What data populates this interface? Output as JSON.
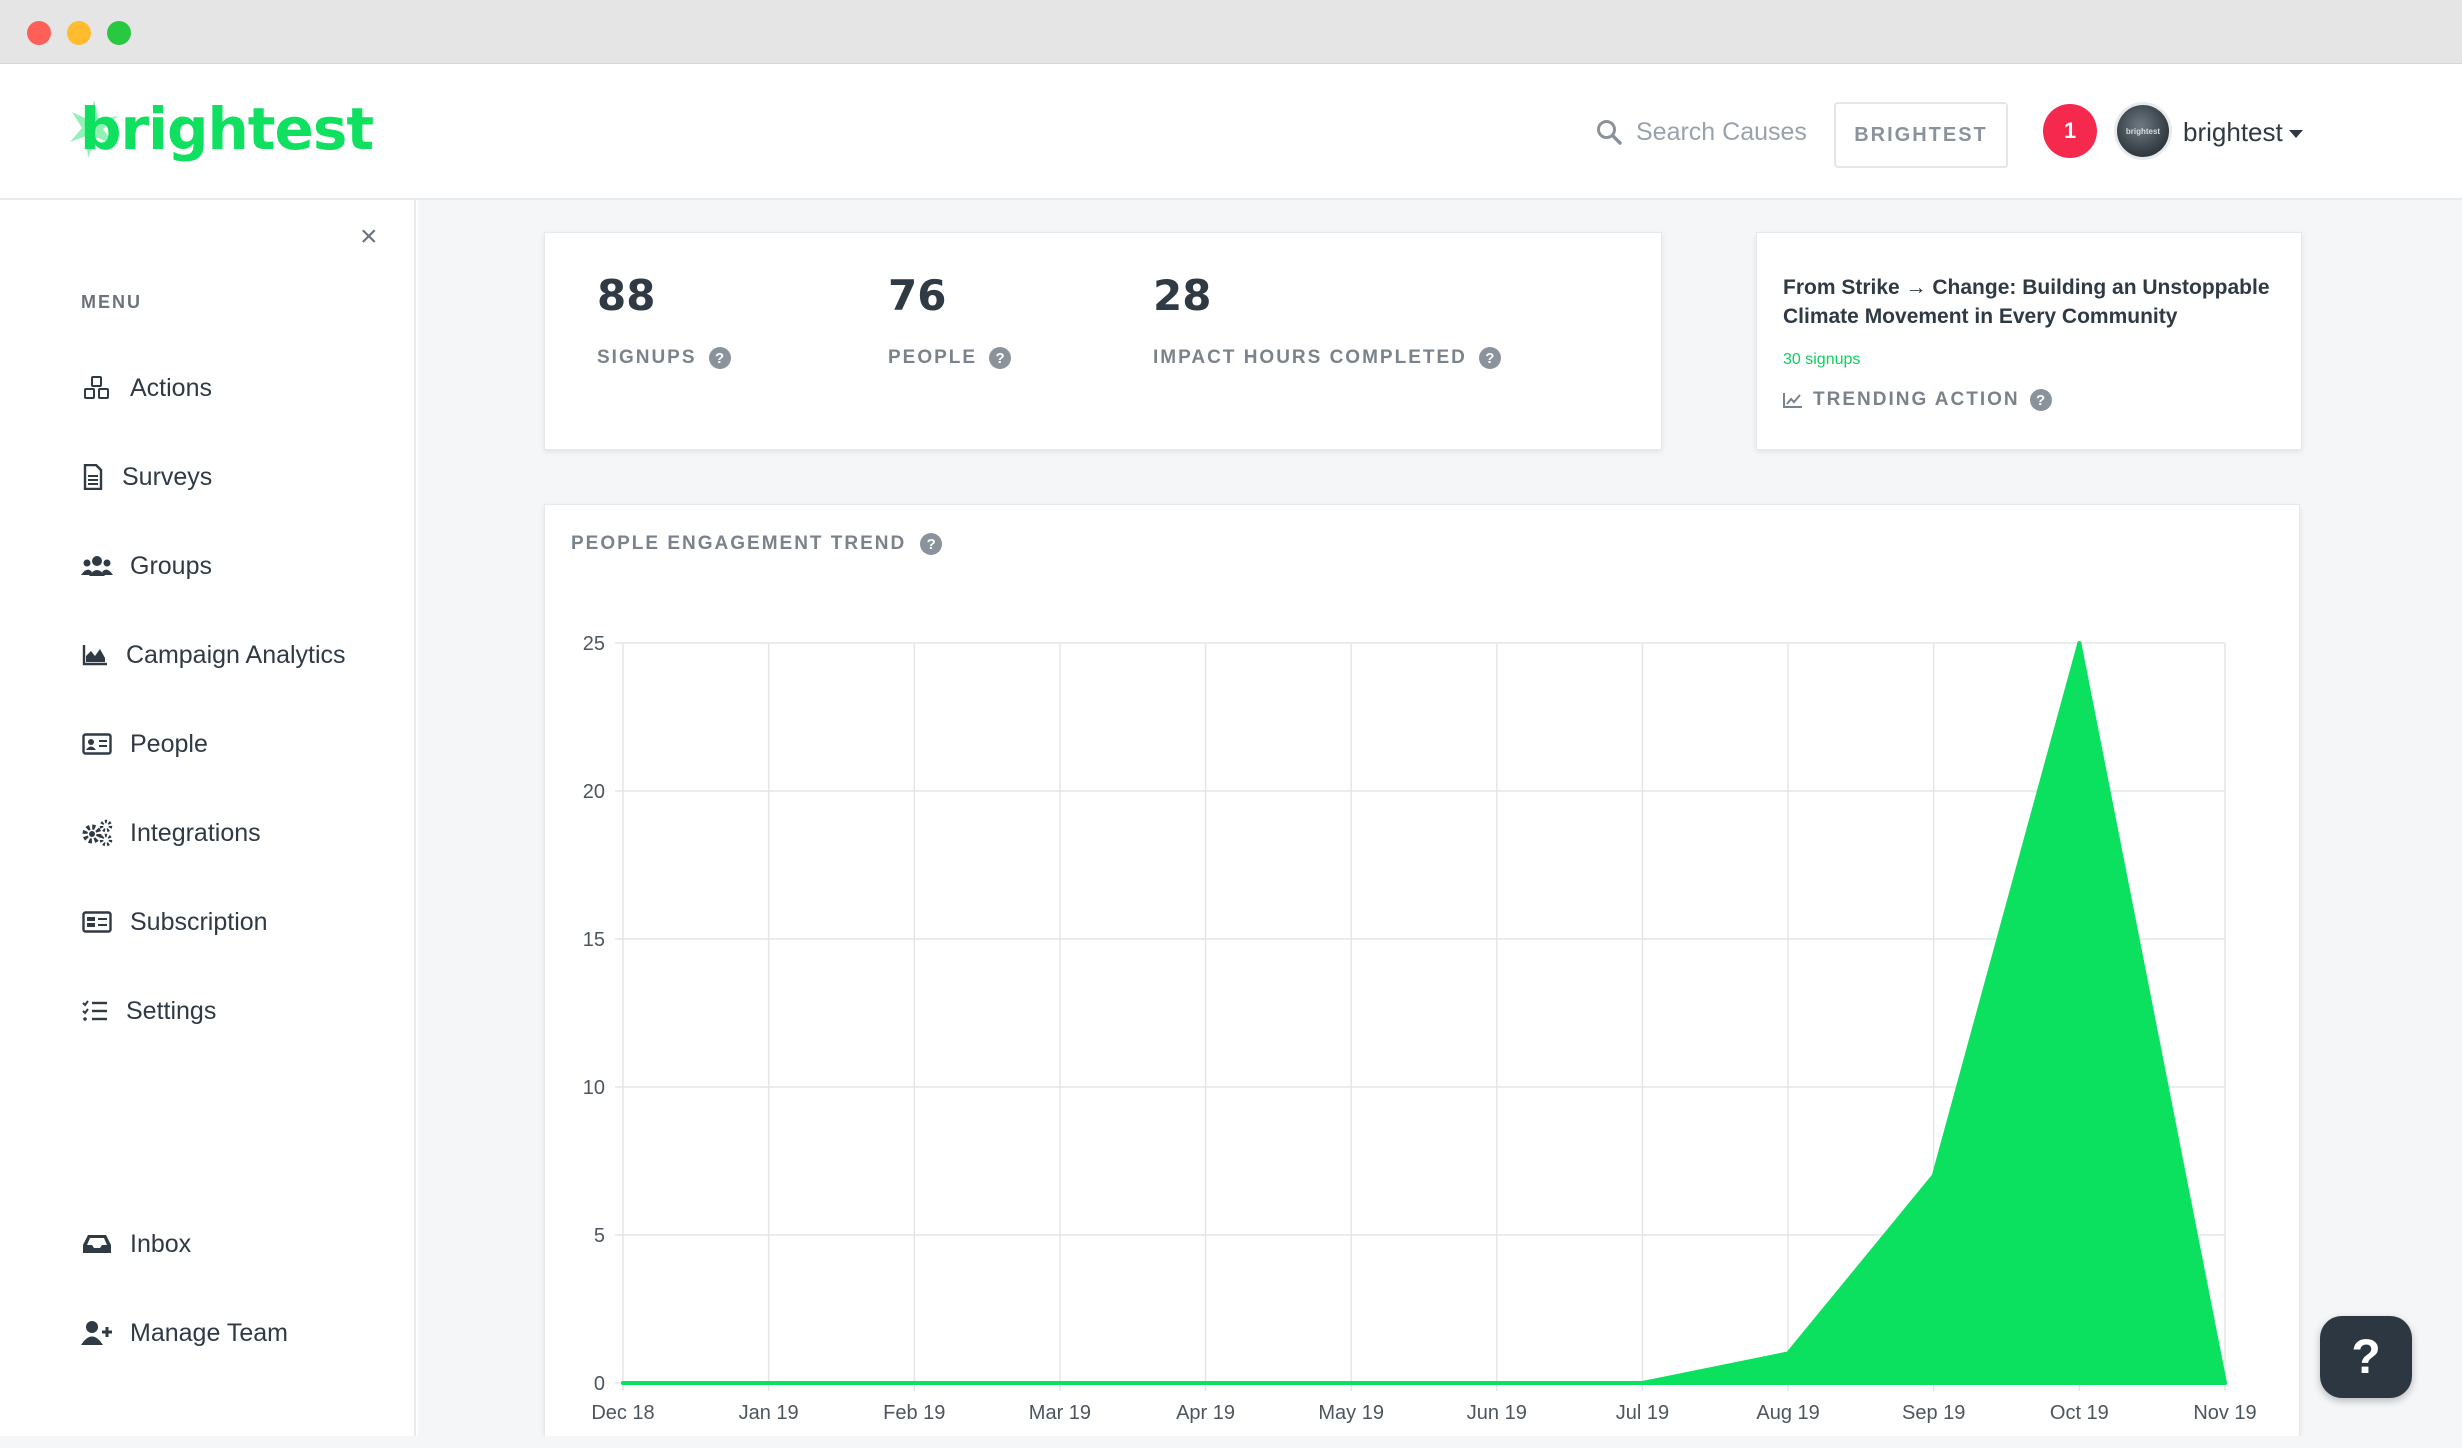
{
  "brand": {
    "logo_text": "brightest",
    "accent_color": "#10e060"
  },
  "header": {
    "search_placeholder": "Search Causes",
    "org_button_label": "BRIGHTEST",
    "notification_count": "1",
    "avatar_text": "brightest",
    "username": "brightest"
  },
  "sidebar": {
    "close_symbol": "×",
    "menu_label": "MENU",
    "items": [
      {
        "label": "Actions",
        "icon": "cubes-icon"
      },
      {
        "label": "Surveys",
        "icon": "document-icon"
      },
      {
        "label": "Groups",
        "icon": "users-icon"
      },
      {
        "label": "Campaign Analytics",
        "icon": "area-chart-icon"
      },
      {
        "label": "People",
        "icon": "id-card-icon"
      },
      {
        "label": "Integrations",
        "icon": "gears-icon"
      },
      {
        "label": "Subscription",
        "icon": "receipt-icon"
      },
      {
        "label": "Settings",
        "icon": "checklist-icon"
      }
    ],
    "bottom_items": [
      {
        "label": "Inbox",
        "icon": "inbox-icon"
      },
      {
        "label": "Manage Team",
        "icon": "user-plus-icon"
      }
    ]
  },
  "stats": {
    "signups": {
      "value": "88",
      "label": "SIGNUPS"
    },
    "people": {
      "value": "76",
      "label": "PEOPLE"
    },
    "impact_hours": {
      "value": "28",
      "label": "IMPACT HOURS COMPLETED"
    }
  },
  "trending": {
    "title": "From Strike → Change: Building an Unstoppable Climate Movement in Every Community",
    "signups": "30 signups",
    "label": "TRENDING ACTION"
  },
  "engagement": {
    "title": "PEOPLE ENGAGEMENT TREND"
  },
  "help_symbol": "?",
  "chart_data": {
    "type": "area",
    "title": "PEOPLE ENGAGEMENT TREND",
    "x": [
      "Dec 18",
      "Jan 19",
      "Feb 19",
      "Mar 19",
      "Apr 19",
      "May 19",
      "Jun 19",
      "Jul 19",
      "Aug 19",
      "Sep 19",
      "Oct 19",
      "Nov 19"
    ],
    "series": [
      {
        "values": [
          0,
          0,
          0,
          0,
          0,
          0,
          0,
          0,
          1,
          7,
          25,
          0
        ],
        "color": "#0be15e"
      }
    ],
    "ylim": [
      0,
      25
    ],
    "yticks": [
      0,
      5,
      10,
      15,
      20,
      25
    ],
    "grid": true
  }
}
